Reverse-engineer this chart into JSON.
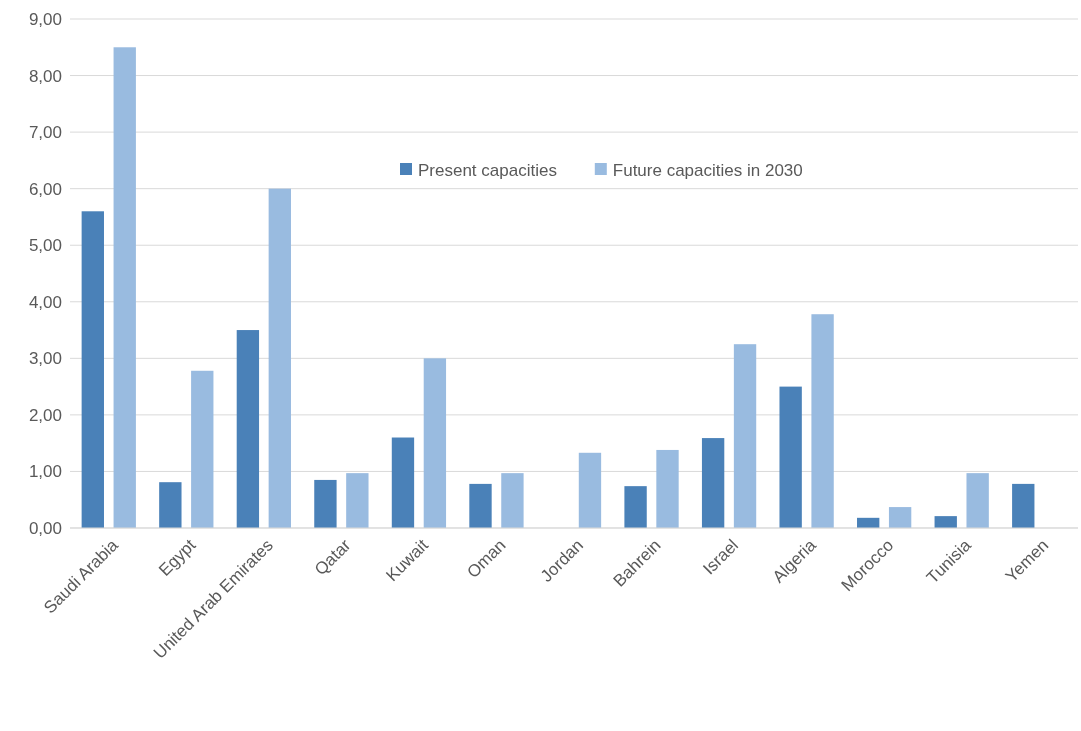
{
  "chart_data": {
    "type": "bar",
    "categories": [
      "Saudi Arabia",
      "Egypt",
      "United Arab Emirates",
      "Qatar",
      "Kuwait",
      "Oman",
      "Jordan",
      "Bahrein",
      "Israel",
      "Algeria",
      "Morocco",
      "Tunisia",
      "Yemen"
    ],
    "series": [
      {
        "name": "Present capacities",
        "color": "#4a81b8",
        "values": [
          5.6,
          0.81,
          3.5,
          0.85,
          1.6,
          0.78,
          null,
          0.74,
          1.59,
          2.5,
          0.18,
          0.21,
          0.78
        ]
      },
      {
        "name": "Future capacities in 2030",
        "color": "#99bbe0",
        "values": [
          8.5,
          2.78,
          6.0,
          0.97,
          3.0,
          0.97,
          1.33,
          1.38,
          3.25,
          3.78,
          0.37,
          0.97,
          null
        ]
      }
    ],
    "ylim": [
      0,
      9
    ],
    "yticks": [
      {
        "value": 0,
        "label": "0,00"
      },
      {
        "value": 1,
        "label": "1,00"
      },
      {
        "value": 2,
        "label": "2,00"
      },
      {
        "value": 3,
        "label": "3,00"
      },
      {
        "value": 4,
        "label": "4,00"
      },
      {
        "value": 5,
        "label": "5,00"
      },
      {
        "value": 6,
        "label": "6,00"
      },
      {
        "value": 7,
        "label": "7,00"
      },
      {
        "value": 8,
        "label": "8,00"
      },
      {
        "value": 9,
        "label": "9,00"
      }
    ],
    "grid": "y",
    "legend": "top"
  }
}
